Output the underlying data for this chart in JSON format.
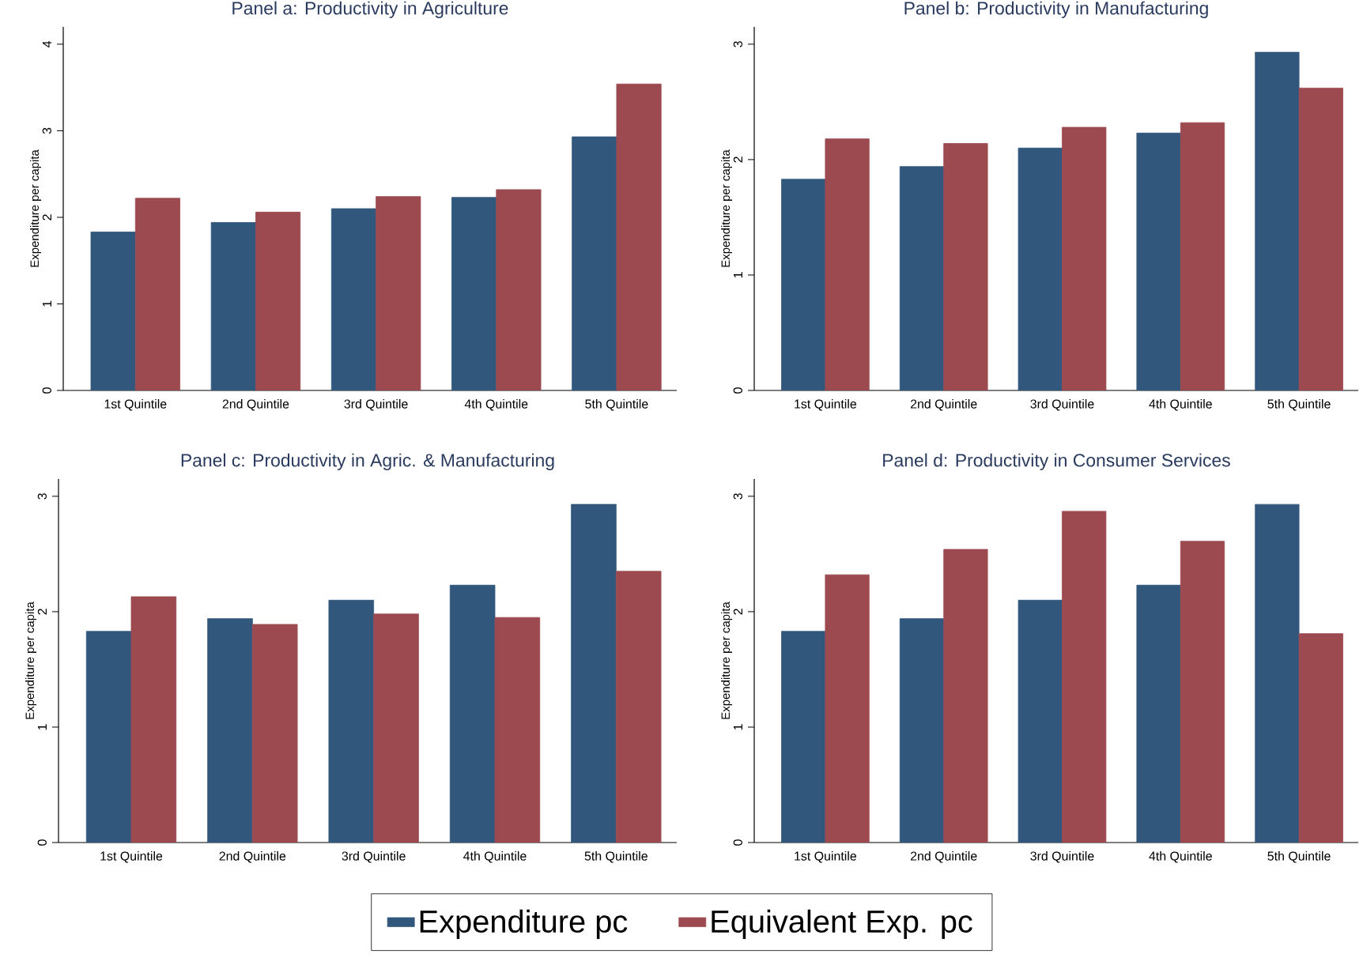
{
  "chart_data": [
    {
      "type": "bar",
      "title": "Panel a: Productivity in Agriculture",
      "ylabel": "Expenditure per capita",
      "categories": [
        "1st Quintile",
        "2nd Quintile",
        "3rd Quintile",
        "4th Quintile",
        "5th Quintile"
      ],
      "series": [
        {
          "color": "#31587c",
          "values": [
            1.83,
            1.94,
            2.1,
            2.23,
            2.93
          ]
        },
        {
          "color": "#9c4a50",
          "values": [
            2.22,
            2.06,
            2.24,
            2.32,
            3.54
          ]
        }
      ],
      "ylim": [
        0,
        4.2
      ],
      "yticks": [
        0,
        1,
        2,
        3,
        4
      ]
    },
    {
      "type": "bar",
      "title": "Panel b: Productivity in Manufacturing",
      "ylabel": "Expenditure per capita",
      "categories": [
        "1st Quintile",
        "2nd Quintile",
        "3rd Quintile",
        "4th Quintile",
        "5th Quintile"
      ],
      "series": [
        {
          "color": "#31587c",
          "values": [
            1.83,
            1.94,
            2.1,
            2.23,
            2.93
          ]
        },
        {
          "color": "#9c4a50",
          "values": [
            2.18,
            2.14,
            2.28,
            2.32,
            2.62
          ]
        }
      ],
      "ylim": [
        0,
        3.15
      ],
      "yticks": [
        0,
        1,
        2,
        3
      ]
    },
    {
      "type": "bar",
      "title": "Panel c: Productivity in Agric. & Manufacturing",
      "ylabel": "Expenditure per capita",
      "categories": [
        "1st Quintile",
        "2nd Quintile",
        "3rd Quintile",
        "4th Quintile",
        "5th Quintile"
      ],
      "series": [
        {
          "color": "#31587c",
          "values": [
            1.83,
            1.94,
            2.1,
            2.23,
            2.93
          ]
        },
        {
          "color": "#9c4a50",
          "values": [
            2.13,
            1.89,
            1.98,
            1.95,
            2.35
          ]
        }
      ],
      "ylim": [
        0,
        3.15
      ],
      "yticks": [
        0,
        1,
        2,
        3
      ]
    },
    {
      "type": "bar",
      "title": "Panel d: Productivity in Consumer Services",
      "ylabel": "Expenditure per capita",
      "categories": [
        "1st Quintile",
        "2nd Quintile",
        "3rd Quintile",
        "4th Quintile",
        "5th Quintile"
      ],
      "series": [
        {
          "name": "Expenditure pc",
          "color": "#31587c",
          "values": [
            1.83,
            1.94,
            2.1,
            2.23,
            2.93
          ]
        },
        {
          "name": "Equivalent Exp. pc",
          "color": "#9c4a50",
          "values": [
            2.32,
            2.54,
            2.87,
            2.61,
            1.81
          ]
        }
      ],
      "ylim": [
        0,
        3.15
      ],
      "yticks": [
        0,
        1,
        2,
        3
      ],
      "legend": "bottom"
    }
  ]
}
